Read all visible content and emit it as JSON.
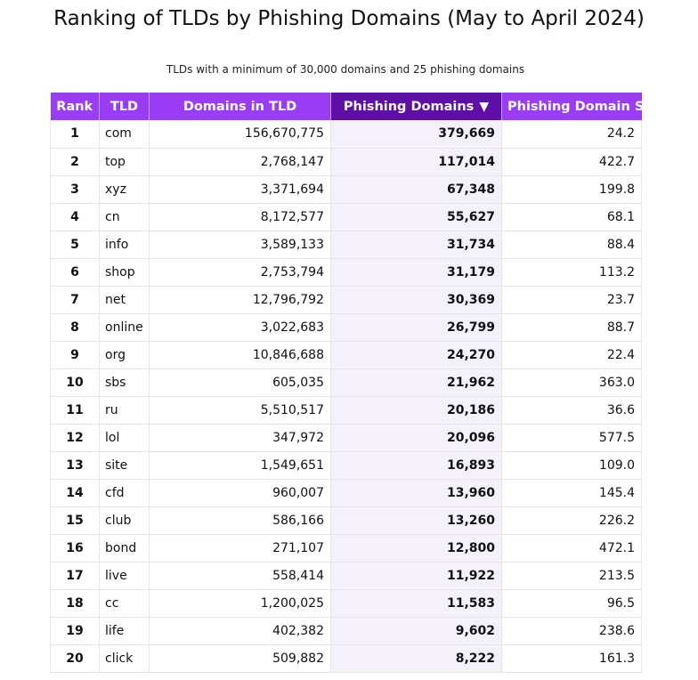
{
  "title": "Ranking of TLDs by Phishing Domains (May to April 2024)",
  "subtitle": "TLDs with a minimum of 30,000 domains and 25 phishing domains",
  "colors": {
    "header_bg": "#9a3cf3",
    "sorted_header_bg": "#5f0fa6",
    "sorted_column_bg": "#f4f1fb",
    "header_text": "#ffffff"
  },
  "chart_data": {
    "type": "table",
    "sorted_by": "Phishing Domains",
    "sort_direction": "descending",
    "sort_indicator": "▼",
    "columns": [
      "Rank",
      "TLD",
      "Domains in TLD",
      "Phishing Domains",
      "Phishing Domain Score"
    ],
    "rows": [
      {
        "rank": "1",
        "tld": "com",
        "domains": "156,670,775",
        "phishing": "379,669",
        "score": "24.2"
      },
      {
        "rank": "2",
        "tld": "top",
        "domains": "2,768,147",
        "phishing": "117,014",
        "score": "422.7"
      },
      {
        "rank": "3",
        "tld": "xyz",
        "domains": "3,371,694",
        "phishing": "67,348",
        "score": "199.8"
      },
      {
        "rank": "4",
        "tld": "cn",
        "domains": "8,172,577",
        "phishing": "55,627",
        "score": "68.1"
      },
      {
        "rank": "5",
        "tld": "info",
        "domains": "3,589,133",
        "phishing": "31,734",
        "score": "88.4"
      },
      {
        "rank": "6",
        "tld": "shop",
        "domains": "2,753,794",
        "phishing": "31,179",
        "score": "113.2"
      },
      {
        "rank": "7",
        "tld": "net",
        "domains": "12,796,792",
        "phishing": "30,369",
        "score": "23.7"
      },
      {
        "rank": "8",
        "tld": "online",
        "domains": "3,022,683",
        "phishing": "26,799",
        "score": "88.7"
      },
      {
        "rank": "9",
        "tld": "org",
        "domains": "10,846,688",
        "phishing": "24,270",
        "score": "22.4"
      },
      {
        "rank": "10",
        "tld": "sbs",
        "domains": "605,035",
        "phishing": "21,962",
        "score": "363.0"
      },
      {
        "rank": "11",
        "tld": "ru",
        "domains": "5,510,517",
        "phishing": "20,186",
        "score": "36.6"
      },
      {
        "rank": "12",
        "tld": "lol",
        "domains": "347,972",
        "phishing": "20,096",
        "score": "577.5"
      },
      {
        "rank": "13",
        "tld": "site",
        "domains": "1,549,651",
        "phishing": "16,893",
        "score": "109.0"
      },
      {
        "rank": "14",
        "tld": "cfd",
        "domains": "960,007",
        "phishing": "13,960",
        "score": "145.4"
      },
      {
        "rank": "15",
        "tld": "club",
        "domains": "586,166",
        "phishing": "13,260",
        "score": "226.2"
      },
      {
        "rank": "16",
        "tld": "bond",
        "domains": "271,107",
        "phishing": "12,800",
        "score": "472.1"
      },
      {
        "rank": "17",
        "tld": "live",
        "domains": "558,414",
        "phishing": "11,922",
        "score": "213.5"
      },
      {
        "rank": "18",
        "tld": "cc",
        "domains": "1,200,025",
        "phishing": "11,583",
        "score": "96.5"
      },
      {
        "rank": "19",
        "tld": "life",
        "domains": "402,382",
        "phishing": "9,602",
        "score": "238.6"
      },
      {
        "rank": "20",
        "tld": "click",
        "domains": "509,882",
        "phishing": "8,222",
        "score": "161.3"
      }
    ]
  }
}
